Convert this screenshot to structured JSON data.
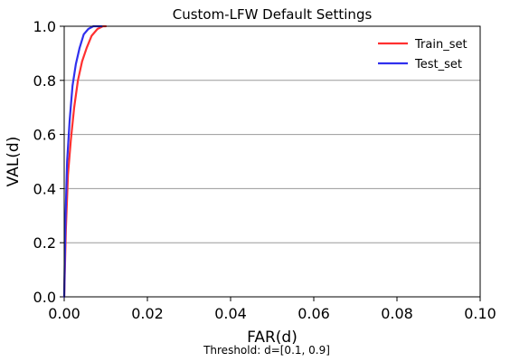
{
  "chart_data": {
    "type": "line",
    "title": "Custom-LFW Default Settings",
    "xlabel": "FAR(d)",
    "ylabel": "VAL(d)",
    "caption": "Threshold: d=[0.1, 0.9]",
    "xlim": [
      0.0,
      0.1
    ],
    "ylim": [
      0.0,
      1.0
    ],
    "xticks": [
      0.0,
      0.02,
      0.04,
      0.06,
      0.08,
      0.1
    ],
    "xtick_labels": [
      "0.00",
      "0.02",
      "0.04",
      "0.06",
      "0.08",
      "0.10"
    ],
    "yticks": [
      0.0,
      0.2,
      0.4,
      0.6,
      0.8,
      1.0
    ],
    "ytick_labels": [
      "0.0",
      "0.2",
      "0.4",
      "0.6",
      "0.8",
      "1.0"
    ],
    "grid": "horizontal",
    "legend_position": "top-right",
    "series": [
      {
        "name": "Train_set",
        "color": "#ff3030",
        "x": [
          0.0,
          0.0004,
          0.0009,
          0.0016,
          0.0024,
          0.0033,
          0.0043,
          0.0054,
          0.0066,
          0.008,
          0.0093,
          0.01
        ],
        "y": [
          0.0,
          0.25,
          0.45,
          0.58,
          0.7,
          0.8,
          0.87,
          0.92,
          0.965,
          0.99,
          1.0,
          1.0
        ]
      },
      {
        "name": "Test_set",
        "color": "#3030ee",
        "x": [
          0.0,
          0.0003,
          0.0007,
          0.0013,
          0.002,
          0.0028,
          0.0037,
          0.0047,
          0.0058,
          0.007,
          0.008,
          0.009
        ],
        "y": [
          0.0,
          0.28,
          0.5,
          0.65,
          0.78,
          0.86,
          0.92,
          0.97,
          0.99,
          1.0,
          1.0,
          1.0
        ]
      }
    ]
  }
}
